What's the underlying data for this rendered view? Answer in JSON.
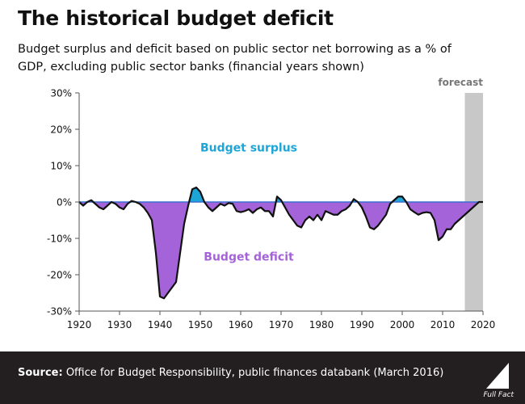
{
  "header": {
    "title": "The historical budget deficit",
    "subtitle": "Budget surplus and deficit based on public sector net borrowing as a % of GDP, excluding public sector banks (financial years shown)"
  },
  "footer": {
    "source_label": "Source:",
    "source_text": "Office for Budget Responsibility, public finances databank (March 2016)",
    "brand": "Full Fact"
  },
  "colors": {
    "surplus": "#1ea5d8",
    "deficit": "#a463d9",
    "line": "#111111",
    "forecast_band": "#c8c8c8",
    "footer_bg": "#231f20"
  },
  "chart_data": {
    "type": "area",
    "x": [
      1920,
      1921,
      1922,
      1923,
      1924,
      1925,
      1926,
      1927,
      1928,
      1929,
      1930,
      1931,
      1932,
      1933,
      1934,
      1935,
      1936,
      1937,
      1938,
      1939,
      1940,
      1941,
      1942,
      1943,
      1944,
      1945,
      1946,
      1947,
      1948,
      1949,
      1950,
      1951,
      1952,
      1953,
      1954,
      1955,
      1956,
      1957,
      1958,
      1959,
      1960,
      1961,
      1962,
      1963,
      1964,
      1965,
      1966,
      1967,
      1968,
      1969,
      1970,
      1971,
      1972,
      1973,
      1974,
      1975,
      1976,
      1977,
      1978,
      1979,
      1980,
      1981,
      1982,
      1983,
      1984,
      1985,
      1986,
      1987,
      1988,
      1989,
      1990,
      1991,
      1992,
      1993,
      1994,
      1995,
      1996,
      1997,
      1998,
      1999,
      2000,
      2001,
      2002,
      2003,
      2004,
      2005,
      2006,
      2007,
      2008,
      2009,
      2010,
      2011,
      2012,
      2013,
      2014,
      2015,
      2016,
      2017,
      2018,
      2019,
      2020
    ],
    "series": [
      {
        "values": [
          0.0,
          -1.0,
          0.0,
          0.5,
          -0.5,
          -1.5,
          -2.0,
          -1.0,
          0.0,
          -0.5,
          -1.5,
          -2.0,
          -0.5,
          0.3,
          0.0,
          -0.5,
          -1.5,
          -3.0,
          -5.0,
          -14.0,
          -26.0,
          -26.5,
          -25.0,
          -23.5,
          -22.0,
          -14.0,
          -6.0,
          -1.0,
          3.5,
          4.0,
          2.8,
          0.0,
          -1.5,
          -2.5,
          -1.5,
          -0.5,
          -1.0,
          -0.3,
          -0.5,
          -2.5,
          -2.8,
          -2.5,
          -2.0,
          -3.0,
          -2.0,
          -1.5,
          -2.5,
          -2.5,
          -4.0,
          1.5,
          0.5,
          -1.5,
          -3.5,
          -5.0,
          -6.5,
          -7.0,
          -5.0,
          -4.0,
          -5.0,
          -3.5,
          -5.0,
          -2.5,
          -3.0,
          -3.5,
          -3.5,
          -2.5,
          -2.0,
          -1.0,
          0.8,
          0.0,
          -1.5,
          -4.0,
          -7.0,
          -7.5,
          -6.5,
          -5.0,
          -3.5,
          -0.5,
          0.5,
          1.5,
          1.5,
          0.0,
          -2.0,
          -2.8,
          -3.5,
          -3.0,
          -2.8,
          -3.0,
          -5.0,
          -10.5,
          -9.5,
          -7.5,
          -7.5,
          -6.0,
          -5.0,
          -4.0,
          -3.0,
          -2.0,
          -1.0,
          0.0,
          0.0
        ]
      }
    ],
    "ylim": [
      -30,
      30
    ],
    "xlim": [
      1920,
      2020
    ],
    "y_ticks": [
      -30,
      -20,
      -10,
      0,
      10,
      20,
      30
    ],
    "y_tick_labels": [
      "-30%",
      "-20%",
      "-10%",
      "0%",
      "10%",
      "20%",
      "30%"
    ],
    "x_ticks": [
      1920,
      1930,
      1940,
      1950,
      1960,
      1970,
      1980,
      1990,
      2000,
      2010,
      2020
    ],
    "x_tick_labels": [
      "1920",
      "1930",
      "1940",
      "1950",
      "1960",
      "1970",
      "1980",
      "1990",
      "2000",
      "2010",
      "2020"
    ],
    "forecast": {
      "start": 2015.5,
      "end": 2020,
      "label": "forecast"
    },
    "annotations": [
      {
        "text": "Budget surplus",
        "x": 1962,
        "y": 15,
        "kind": "surplus"
      },
      {
        "text": "Budget deficit",
        "x": 1962,
        "y": -15,
        "kind": "deficit"
      }
    ],
    "grid": false,
    "legend": "none"
  }
}
